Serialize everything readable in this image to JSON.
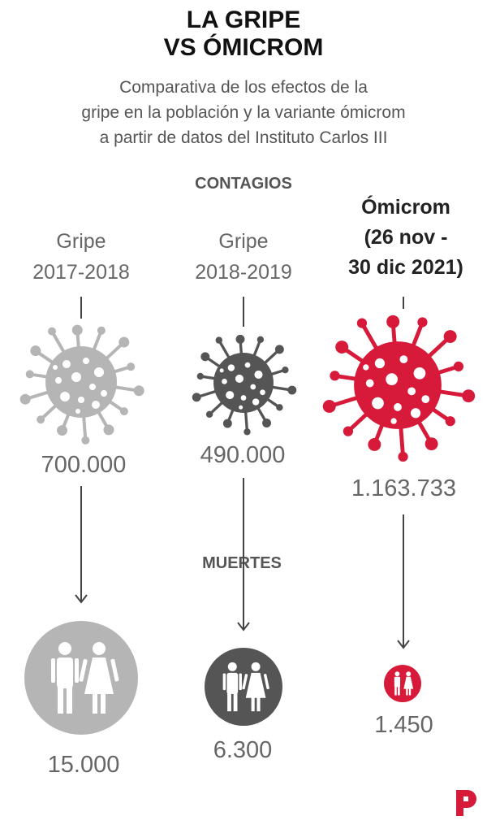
{
  "title_line1": "LA GRIPE",
  "title_line2": "VS ÓMICROM",
  "subtitle": [
    "Comparativa de los efectos de la",
    "gripe en la población y la variante ómicrom",
    "a partir de datos del Instituto Carlos III"
  ],
  "sections": {
    "contagios": "CONTAGIOS",
    "muertes": "MUERTES"
  },
  "columns": [
    {
      "label": [
        "Gripe",
        "2017-2018"
      ],
      "contagios": "700.000",
      "muertes": "15.000",
      "color": "#b5b5b5"
    },
    {
      "label": [
        "Gripe",
        "2018-2019"
      ],
      "contagios": "490.000",
      "muertes": "6.300",
      "color": "#555555"
    },
    {
      "label": [
        "Ómicrom",
        "(26 nov -",
        "30 dic 2021)"
      ],
      "contagios": "1.163.733",
      "muertes": "1.450",
      "color": "#d71a39"
    }
  ],
  "colors": {
    "title": "#111111",
    "text": "#666666",
    "accent": "#d71a39"
  },
  "icons": {
    "virus": "virus-icon",
    "people": "man-woman-icon",
    "logo": "publico-logo"
  }
}
